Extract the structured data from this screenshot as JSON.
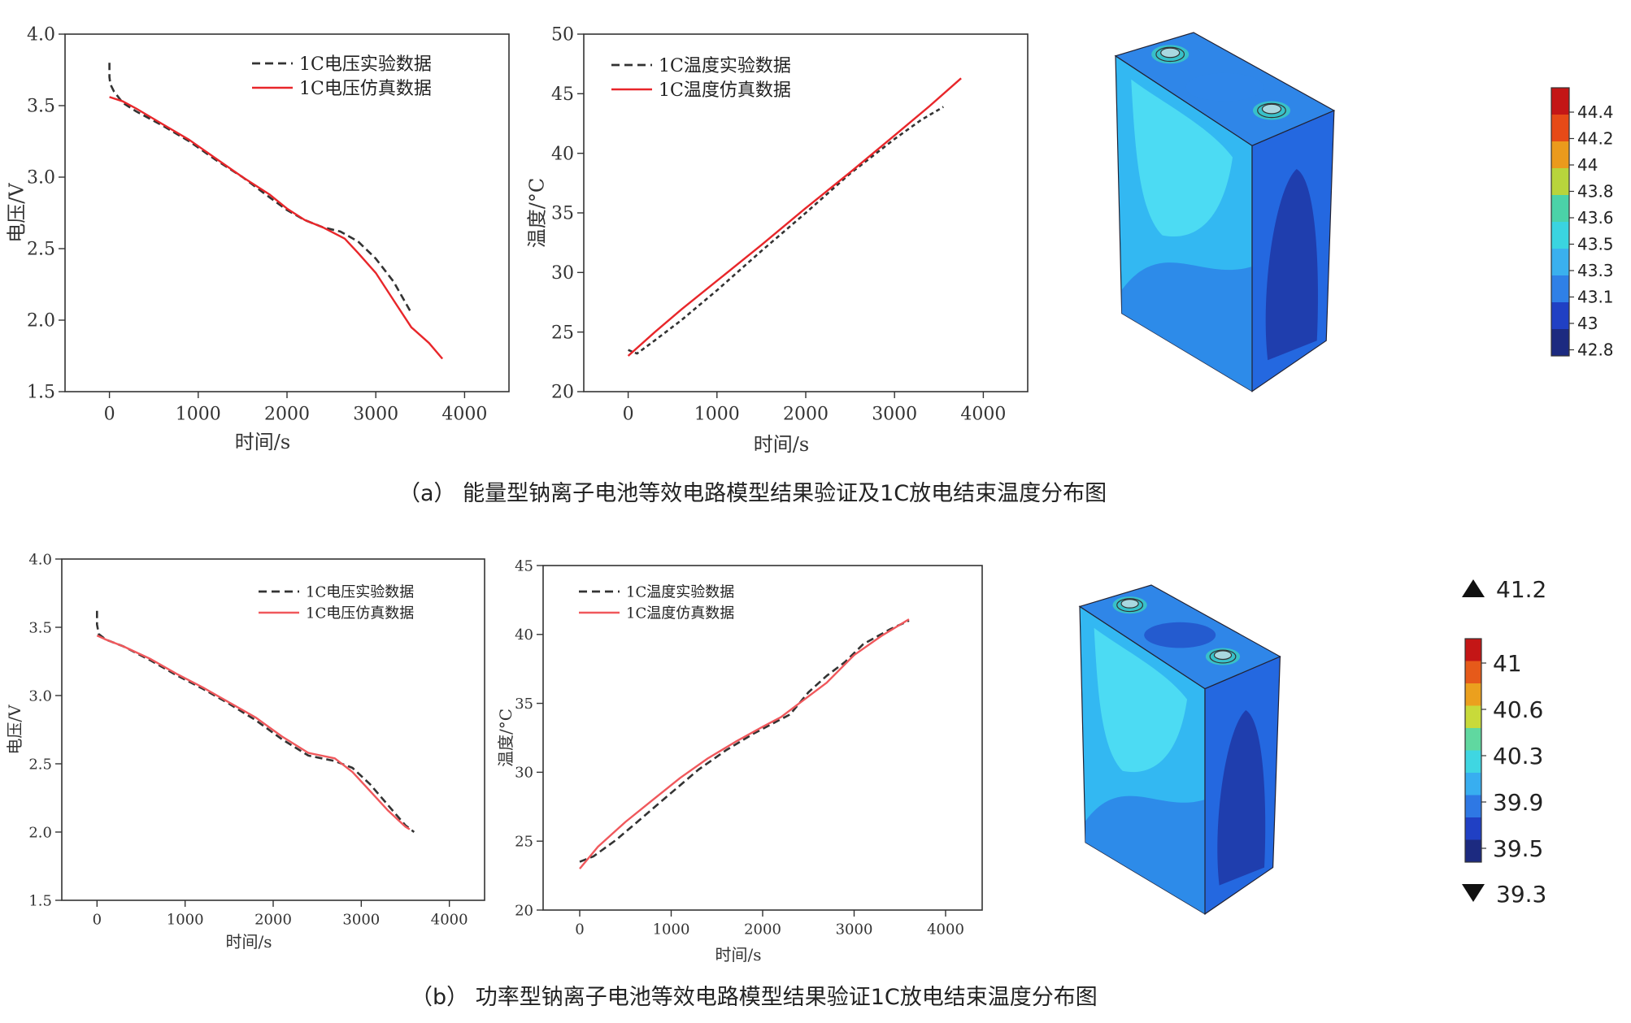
{
  "colors": {
    "exp_line": "#333333",
    "sim_line_a": "#e8262a",
    "sim_line_b": "#f0585c",
    "box_top": "#2f86e8",
    "box_front": "#33b8f2",
    "box_side": "#2468e0"
  },
  "chart_data": [
    {
      "id": "a-voltage",
      "type": "line",
      "xlabel": "时间/s",
      "ylabel": "电压/V",
      "xlim": [
        -500,
        4500
      ],
      "ylim": [
        1.5,
        4.0
      ],
      "xticks": [
        0,
        1000,
        2000,
        3000,
        4000
      ],
      "yticks": [
        "1.5",
        "2.0",
        "2.5",
        "3.0",
        "3.5",
        "4.0"
      ],
      "legend_position": "top-right",
      "series": [
        {
          "name": "1C电压实验数据",
          "style": "dashed",
          "x": [
            0,
            0,
            10,
            50,
            150,
            300,
            600,
            900,
            1200,
            1500,
            1800,
            2000,
            2200,
            2400,
            2600,
            2800,
            3000,
            3200,
            3400
          ],
          "y": [
            3.8,
            3.7,
            3.65,
            3.6,
            3.52,
            3.46,
            3.36,
            3.25,
            3.12,
            3.0,
            2.86,
            2.77,
            2.7,
            2.65,
            2.62,
            2.55,
            2.43,
            2.27,
            2.05
          ]
        },
        {
          "name": "1C电压仿真数据",
          "style": "solid",
          "x": [
            0,
            150,
            300,
            600,
            900,
            1200,
            1500,
            1800,
            2000,
            2200,
            2400,
            2650,
            2800,
            3000,
            3200,
            3400,
            3600,
            3750
          ],
          "y": [
            3.56,
            3.53,
            3.48,
            3.37,
            3.26,
            3.13,
            3.0,
            2.88,
            2.78,
            2.7,
            2.65,
            2.57,
            2.47,
            2.33,
            2.14,
            1.95,
            1.84,
            1.73
          ]
        }
      ]
    },
    {
      "id": "a-temperature",
      "type": "line",
      "xlabel": "时间/s",
      "ylabel": "温度/°C",
      "xlim": [
        -500,
        4500
      ],
      "ylim": [
        20,
        50
      ],
      "xticks": [
        0,
        1000,
        2000,
        3000,
        4000
      ],
      "yticks": [
        "20",
        "25",
        "30",
        "35",
        "40",
        "45",
        "50"
      ],
      "legend_position": "top-left",
      "series": [
        {
          "name": "1C温度实验数据",
          "style": "dotted",
          "x": [
            0,
            100,
            300,
            600,
            1000,
            1500,
            2000,
            2500,
            3000,
            3300,
            3550
          ],
          "y": [
            23.5,
            23.2,
            24.3,
            26.0,
            28.5,
            31.8,
            35.0,
            38.3,
            41.2,
            42.8,
            43.9
          ]
        },
        {
          "name": "1C温度仿真数据",
          "style": "solid",
          "x": [
            0,
            300,
            600,
            1000,
            1500,
            2000,
            2500,
            3000,
            3400,
            3750
          ],
          "y": [
            23.0,
            25.0,
            26.9,
            29.3,
            32.3,
            35.4,
            38.4,
            41.5,
            44.0,
            46.3
          ]
        }
      ]
    },
    {
      "id": "b-voltage",
      "type": "line",
      "xlabel": "时间/s",
      "ylabel": "电压/V",
      "xlim": [
        -400,
        4400
      ],
      "ylim": [
        1.5,
        4.0
      ],
      "xticks": [
        0,
        1000,
        2000,
        3000,
        4000
      ],
      "yticks": [
        "1.5",
        "2.0",
        "2.5",
        "3.0",
        "3.5",
        "4.0"
      ],
      "legend_position": "top-right",
      "series": [
        {
          "name": "1C电压实验数据",
          "style": "dashed",
          "x": [
            0,
            0,
            20,
            100,
            300,
            600,
            900,
            1200,
            1500,
            1800,
            2100,
            2400,
            2700,
            2900,
            3100,
            3300,
            3500,
            3600
          ],
          "y": [
            3.62,
            3.52,
            3.45,
            3.41,
            3.36,
            3.26,
            3.15,
            3.05,
            2.94,
            2.82,
            2.68,
            2.56,
            2.52,
            2.47,
            2.35,
            2.2,
            2.05,
            2.0
          ]
        },
        {
          "name": "1C电压仿真数据",
          "style": "solid",
          "x": [
            0,
            100,
            300,
            600,
            900,
            1200,
            1500,
            1800,
            2100,
            2400,
            2700,
            2900,
            3100,
            3300,
            3500,
            3550
          ],
          "y": [
            3.44,
            3.41,
            3.36,
            3.27,
            3.16,
            3.06,
            2.95,
            2.84,
            2.7,
            2.58,
            2.54,
            2.44,
            2.3,
            2.16,
            2.04,
            2.02
          ]
        }
      ]
    },
    {
      "id": "b-temperature",
      "type": "line",
      "xlabel": "时间/s",
      "ylabel": "温度/°C",
      "xlim": [
        -400,
        4400
      ],
      "ylim": [
        20,
        45
      ],
      "xticks": [
        0,
        1000,
        2000,
        3000,
        4000
      ],
      "yticks": [
        "20",
        "25",
        "30",
        "35",
        "40",
        "45"
      ],
      "legend_position": "top-left",
      "series": [
        {
          "name": "1C温度实验数据",
          "style": "dashed",
          "x": [
            0,
            150,
            400,
            700,
            1000,
            1300,
            1600,
            1900,
            2100,
            2300,
            2500,
            2700,
            2900,
            3100,
            3400,
            3600
          ],
          "y": [
            23.5,
            23.9,
            25.1,
            26.8,
            28.5,
            30.2,
            31.6,
            32.8,
            33.5,
            34.2,
            35.8,
            37.0,
            38.0,
            39.3,
            40.4,
            41.0
          ]
        },
        {
          "name": "1C温度仿真数据",
          "style": "solid",
          "x": [
            0,
            200,
            500,
            800,
            1100,
            1400,
            1700,
            2000,
            2200,
            2400,
            2700,
            3000,
            3300,
            3600
          ],
          "y": [
            23.0,
            24.6,
            26.4,
            28.0,
            29.6,
            31.0,
            32.2,
            33.3,
            34.0,
            35.0,
            36.5,
            38.5,
            39.9,
            41.1
          ]
        }
      ]
    }
  ],
  "colorbar_a": {
    "labels": [
      "44.4",
      "44.2",
      "44",
      "43.8",
      "43.6",
      "43.5",
      "43.3",
      "43.1",
      "43",
      "42.8"
    ],
    "colors": [
      "#c41616",
      "#e64a17",
      "#eb9a1c",
      "#b8d43c",
      "#4bd2a8",
      "#3ad4e0",
      "#3ab0ee",
      "#2f80e6",
      "#2040c4",
      "#1c2a80"
    ]
  },
  "colorbar_b": {
    "max_label": "41.2",
    "min_label": "39.3",
    "labels": [
      "41",
      "40.6",
      "40.3",
      "39.9",
      "39.5"
    ],
    "colors": [
      "#c41616",
      "#e65a1a",
      "#eba01e",
      "#c8da3a",
      "#60d8a0",
      "#3fd6e2",
      "#38aef0",
      "#2e78e4",
      "#2040c4",
      "#1c2a80"
    ]
  },
  "captions": {
    "a": "（a）   能量型钠离子电池等效电路模型结果验证及1C放电结束温度分布图",
    "b": "（b）   功率型钠离子电池等效电路模型结果验证1C放电结束温度分布图"
  }
}
